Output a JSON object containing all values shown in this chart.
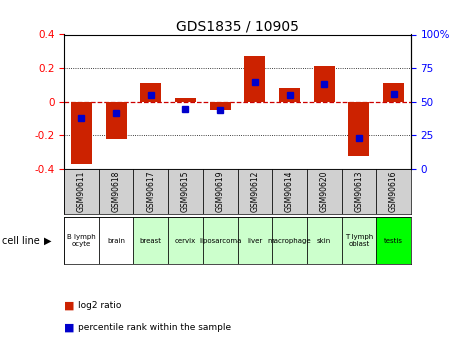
{
  "title": "GDS1835 / 10905",
  "samples": [
    "GSM90611",
    "GSM90618",
    "GSM90617",
    "GSM90615",
    "GSM90619",
    "GSM90612",
    "GSM90614",
    "GSM90620",
    "GSM90613",
    "GSM90616"
  ],
  "cell_lines": [
    "B lymph\nocyte",
    "brain",
    "breast",
    "cervix",
    "liposarcoma",
    "liver",
    "macrophage",
    "skin",
    "T lymph\noblast",
    "testis"
  ],
  "cell_line_colors": [
    "#ffffff",
    "#ffffff",
    "#ccffcc",
    "#ccffcc",
    "#ccffcc",
    "#ccffcc",
    "#ccffcc",
    "#ccffcc",
    "#ccffcc",
    "#00ff00"
  ],
  "log2_ratio": [
    -0.37,
    -0.22,
    0.11,
    0.02,
    -0.05,
    0.27,
    0.08,
    0.21,
    -0.32,
    0.11
  ],
  "percentile_rank": [
    38,
    42,
    55,
    45,
    44,
    65,
    55,
    63,
    23,
    56
  ],
  "ylim": [
    -0.4,
    0.4
  ],
  "y2lim": [
    0,
    100
  ],
  "y2ticks": [
    0,
    25,
    50,
    75,
    100
  ],
  "y2labels": [
    "0",
    "25",
    "50",
    "75",
    "100%"
  ],
  "yticks": [
    -0.4,
    -0.2,
    0,
    0.2,
    0.4
  ],
  "bar_color": "#cc2200",
  "dot_color": "#0000cc",
  "bg_color": "#ffffff",
  "grid_color": "#000000",
  "zero_line_color": "#cc0000",
  "cell_line_label": "cell line",
  "arrow": "▶",
  "legend_log2": "log2 ratio",
  "legend_pct": "percentile rank within the sample"
}
